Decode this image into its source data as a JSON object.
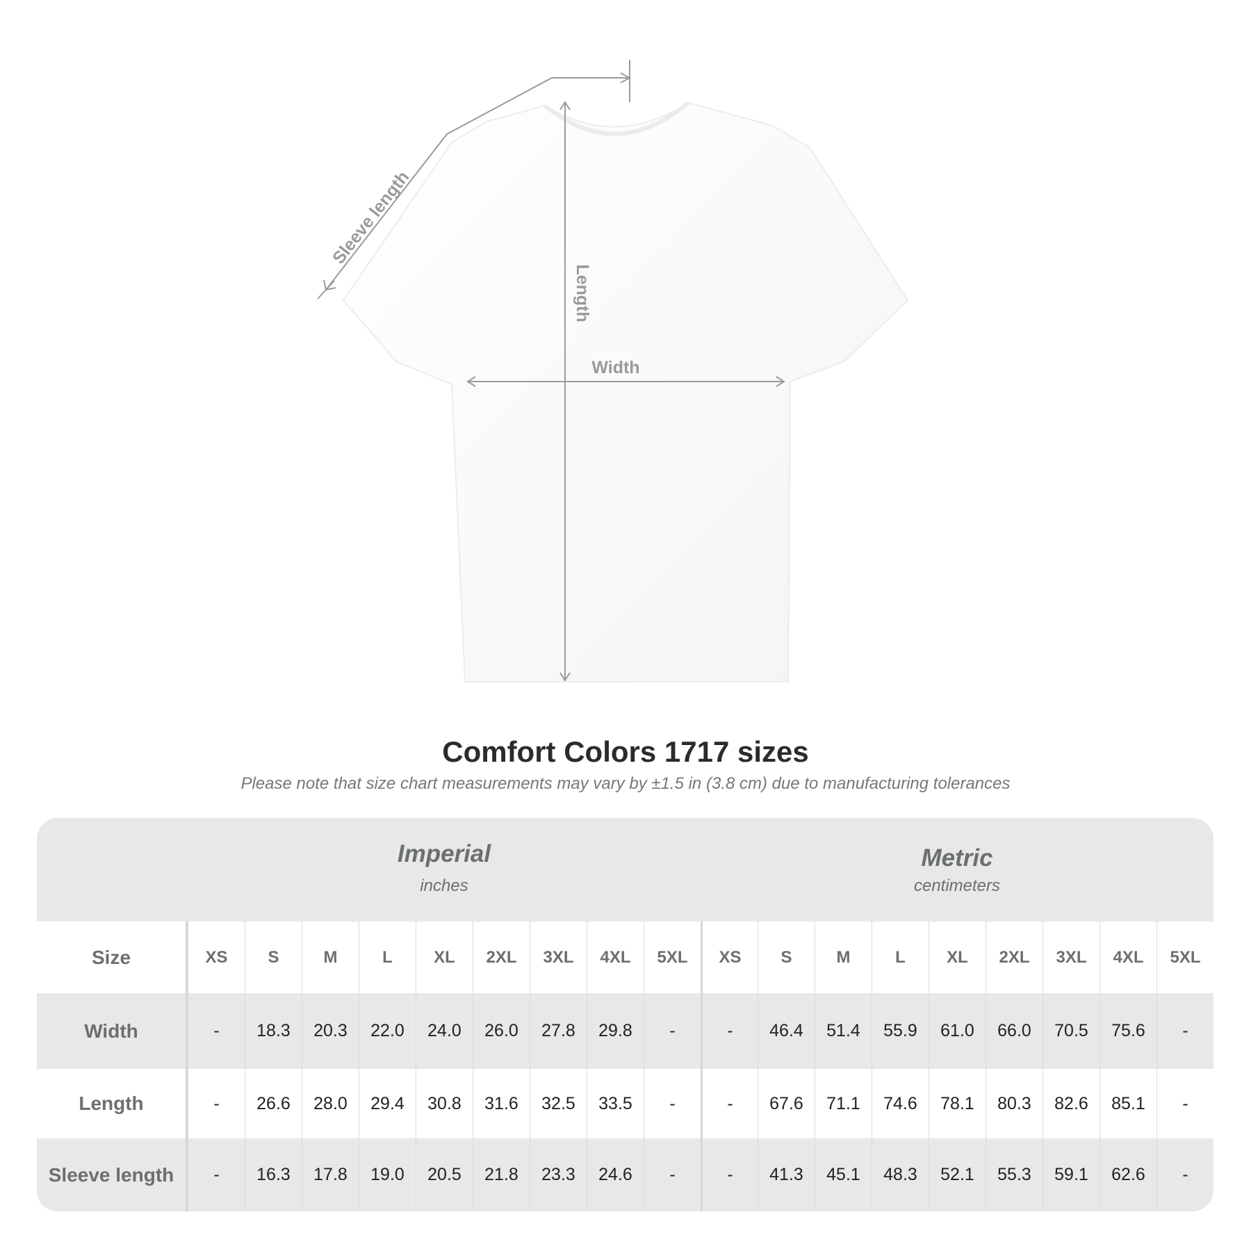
{
  "diagram": {
    "labels": {
      "sleeve": "Sleeve length",
      "length": "Length",
      "width": "Width"
    },
    "colors": {
      "dimension_line": "#9a9a9a",
      "shirt": "#ffffff"
    }
  },
  "title": "Comfort Colors 1717 sizes",
  "note": "Please note that size chart measurements may vary by ±1.5 in (3.8 cm) due to manufacturing tolerances",
  "table": {
    "imperial": {
      "name": "Imperial",
      "unit": "inches"
    },
    "metric": {
      "name": "Metric",
      "unit": "centimeters"
    },
    "size_label": "Size",
    "sizes": [
      "XS",
      "S",
      "M",
      "L",
      "XL",
      "2XL",
      "3XL",
      "4XL",
      "5XL"
    ],
    "rows": [
      {
        "label": "Width",
        "imperial": [
          "-",
          "18.3",
          "20.3",
          "22.0",
          "24.0",
          "26.0",
          "27.8",
          "29.8",
          "-"
        ],
        "metric": [
          "-",
          "46.4",
          "51.4",
          "55.9",
          "61.0",
          "66.0",
          "70.5",
          "75.6",
          "-"
        ]
      },
      {
        "label": "Length",
        "imperial": [
          "-",
          "26.6",
          "28.0",
          "29.4",
          "30.8",
          "31.6",
          "32.5",
          "33.5",
          "-"
        ],
        "metric": [
          "-",
          "67.6",
          "71.1",
          "74.6",
          "78.1",
          "80.3",
          "82.6",
          "85.1",
          "-"
        ]
      },
      {
        "label": "Sleeve length",
        "imperial": [
          "-",
          "16.3",
          "17.8",
          "19.0",
          "20.5",
          "21.8",
          "23.3",
          "24.6",
          "-"
        ],
        "metric": [
          "-",
          "41.3",
          "45.1",
          "48.3",
          "52.1",
          "55.3",
          "59.1",
          "62.6",
          "-"
        ]
      }
    ]
  }
}
